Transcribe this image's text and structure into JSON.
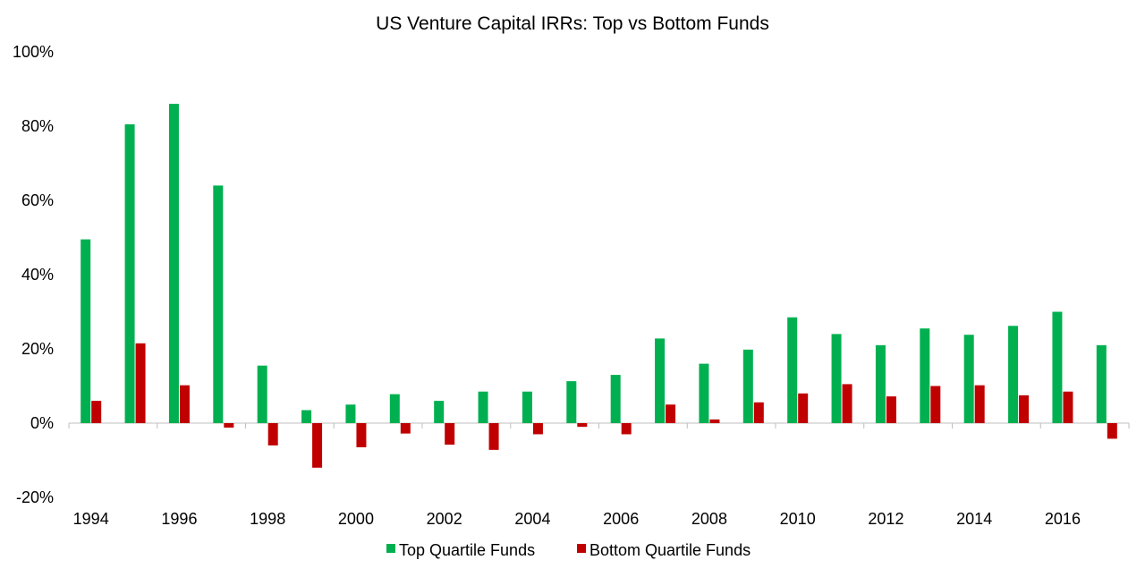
{
  "colors": {
    "top": "#00b050",
    "bottom": "#c00000",
    "axis": "#bfbfbf"
  },
  "chart_data": {
    "type": "bar",
    "title": "US Venture Capital IRRs: Top vs Bottom Funds",
    "xlabel": "",
    "ylabel": "",
    "ylim": [
      -20,
      100
    ],
    "yticks": [
      -20,
      0,
      20,
      40,
      60,
      80,
      100
    ],
    "ytick_labels": [
      "-20%",
      "0%",
      "20%",
      "40%",
      "60%",
      "80%",
      "100%"
    ],
    "categories": [
      "1994",
      "1995",
      "1996",
      "1997",
      "1998",
      "1999",
      "2000",
      "2001",
      "2002",
      "2003",
      "2004",
      "2005",
      "2006",
      "2007",
      "2008",
      "2009",
      "2010",
      "2011",
      "2012",
      "2013",
      "2014",
      "2015",
      "2016",
      "2017"
    ],
    "xtick_labels": [
      "1994",
      "1996",
      "1998",
      "2000",
      "2002",
      "2004",
      "2006",
      "2008",
      "2010",
      "2012",
      "2014",
      "2016"
    ],
    "series": [
      {
        "name": "Top Quartile Funds",
        "values": [
          49.5,
          80.5,
          86,
          64,
          15.5,
          3.5,
          5,
          7.8,
          6,
          8.5,
          8.5,
          11.3,
          13,
          22.8,
          16,
          19.8,
          28.5,
          24,
          21,
          25.5,
          23.8,
          26.2,
          30,
          21
        ]
      },
      {
        "name": "Bottom Quartile Funds",
        "values": [
          6,
          21.5,
          10.2,
          -1.2,
          -6,
          -12,
          -6.5,
          -2.8,
          -5.8,
          -7.2,
          -3,
          -1,
          -3,
          5,
          1,
          5.6,
          8,
          10.5,
          7.2,
          10,
          10.2,
          7.5,
          8.5,
          -4.2
        ]
      }
    ],
    "legend": {
      "position": "bottom-center"
    }
  }
}
